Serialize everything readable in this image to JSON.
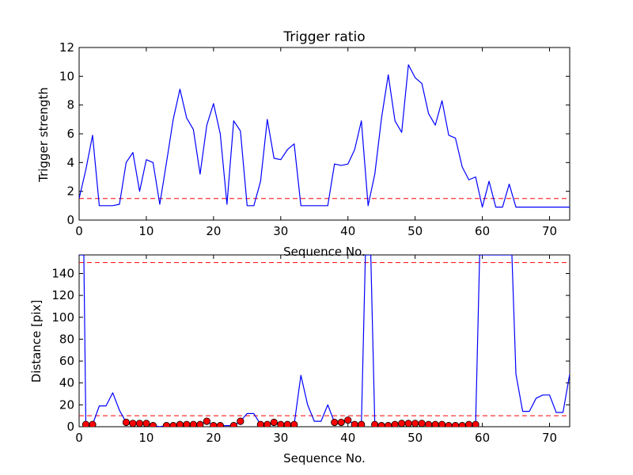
{
  "chart_data": [
    {
      "type": "line",
      "title": "Trigger ratio",
      "xlabel": "Sequence No.",
      "ylabel": "Trigger strength",
      "xlim": [
        0,
        73
      ],
      "ylim": [
        0,
        12
      ],
      "xticks": [
        0,
        10,
        20,
        30,
        40,
        50,
        60,
        70
      ],
      "yticks": [
        0,
        2,
        4,
        6,
        8,
        10,
        12
      ],
      "series": [
        {
          "x": [
            0,
            1,
            2,
            3,
            4,
            5,
            6,
            7,
            8,
            9,
            10,
            11,
            12,
            13,
            14,
            15,
            16,
            17,
            18,
            19,
            20,
            21,
            22,
            23,
            24,
            25,
            26,
            27,
            28,
            29,
            30,
            31,
            32,
            33,
            34,
            35,
            36,
            37,
            38,
            39,
            40,
            41,
            42,
            43,
            44,
            45,
            46,
            47,
            48,
            49,
            50,
            51,
            52,
            53,
            54,
            55,
            56,
            57,
            58,
            59,
            60,
            61,
            62,
            63,
            64,
            65,
            66,
            67,
            68,
            69,
            70,
            71,
            72,
            73
          ],
          "values": [
            1.5,
            3.5,
            5.9,
            1.0,
            1.0,
            1.0,
            1.1,
            4.0,
            4.7,
            2.0,
            4.2,
            4.0,
            1.1,
            4.0,
            7.0,
            9.1,
            7.1,
            6.3,
            3.2,
            6.6,
            8.1,
            6.0,
            1.1,
            6.9,
            6.2,
            1.0,
            1.0,
            2.7,
            7.0,
            4.3,
            4.2,
            4.9,
            5.3,
            1.0,
            1.0,
            1.0,
            1.0,
            1.0,
            3.9,
            3.8,
            3.9,
            4.9,
            6.9,
            1.0,
            3.2,
            7.1,
            10.1,
            6.9,
            6.1,
            10.8,
            9.9,
            9.5,
            7.4,
            6.6,
            8.3,
            5.9,
            5.7,
            3.7,
            2.8,
            3.0,
            0.9,
            2.7,
            0.9,
            0.9,
            2.5,
            0.9,
            0.9,
            0.9,
            0.9,
            0.9,
            0.9,
            0.9,
            0.9,
            0.9
          ],
          "color": "#0000ff"
        }
      ],
      "reference_lines": [
        {
          "y": 1.5,
          "color": "#ff0000",
          "style": "dashed"
        }
      ],
      "grid": false
    },
    {
      "type": "line",
      "title": "",
      "xlabel": "Sequence No.",
      "ylabel": "Distance [pix]",
      "xlim": [
        0,
        73
      ],
      "ylim": [
        0,
        157
      ],
      "xticks": [
        0,
        10,
        20,
        30,
        40,
        50,
        60,
        70
      ],
      "yticks": [
        0,
        20,
        40,
        60,
        80,
        100,
        120,
        140
      ],
      "series": [
        {
          "x": [
            0,
            0.7,
            1,
            2,
            3,
            4,
            5,
            6,
            7,
            8,
            9,
            10,
            11,
            12,
            13,
            14,
            15,
            16,
            17,
            18,
            19,
            20,
            21,
            22,
            23,
            24,
            25,
            26,
            27,
            28,
            29,
            30,
            31,
            32,
            33,
            34,
            35,
            36,
            37,
            38,
            39,
            40,
            41,
            42,
            42.6,
            43.4,
            44,
            45,
            46,
            47,
            48,
            49,
            50,
            51,
            52,
            53,
            54,
            55,
            56,
            57,
            58,
            59,
            59.6,
            64.4,
            65,
            66,
            67,
            68,
            69,
            70,
            71,
            72,
            73
          ],
          "values": [
            157,
            157,
            2,
            2,
            19,
            19,
            31,
            15,
            4,
            3,
            3,
            3,
            1,
            0,
            1,
            1,
            2,
            2,
            2,
            2,
            5,
            1,
            1,
            1,
            1,
            5,
            12,
            12,
            2,
            2,
            4,
            2,
            2,
            2,
            47,
            20,
            5,
            5,
            20,
            4,
            4,
            6,
            2,
            2,
            157,
            157,
            2,
            1,
            1,
            2,
            3,
            3,
            3,
            3,
            2,
            2,
            2,
            1,
            1,
            1,
            2,
            2,
            157,
            157,
            48,
            14,
            14,
            26,
            29,
            29,
            13,
            13,
            48
          ],
          "color": "#0000ff"
        },
        {
          "x": [
            1,
            2,
            7,
            8,
            9,
            10,
            11,
            13,
            14,
            15,
            16,
            17,
            18,
            19,
            20,
            21,
            23,
            24,
            27,
            28,
            29,
            30,
            31,
            32,
            38,
            39,
            40,
            41,
            42,
            44,
            45,
            46,
            47,
            48,
            49,
            50,
            51,
            52,
            53,
            54,
            55,
            56,
            57,
            58,
            59
          ],
          "values": [
            2,
            2,
            4,
            3,
            3,
            3,
            1,
            1,
            1,
            2,
            2,
            2,
            2,
            5,
            1,
            1,
            1,
            5,
            2,
            2,
            4,
            2,
            2,
            2,
            4,
            4,
            6,
            2,
            2,
            2,
            1,
            1,
            2,
            3,
            3,
            3,
            3,
            2,
            2,
            2,
            1,
            1,
            1,
            2,
            2
          ],
          "color": "#ff0000",
          "marker": "circle"
        }
      ],
      "reference_lines": [
        {
          "y": 150,
          "color": "#ff0000",
          "style": "dashed"
        },
        {
          "y": 10,
          "color": "#ff0000",
          "style": "dashed"
        }
      ],
      "grid": false
    }
  ]
}
